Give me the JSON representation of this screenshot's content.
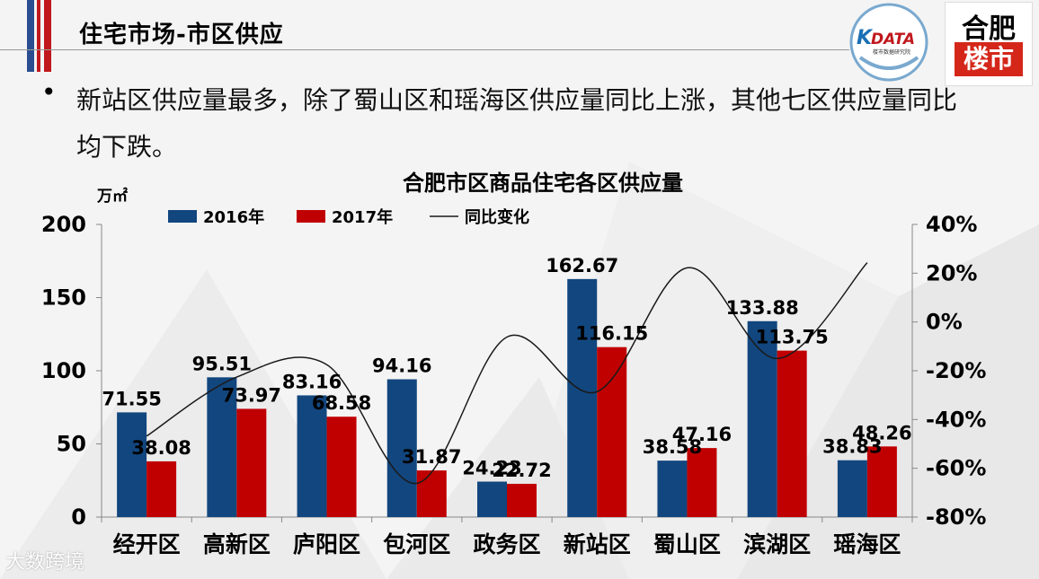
{
  "header": {
    "page_title": "住宅市场-市区供应",
    "logo_left_text": "DATA",
    "logo_left_sub": "楼市数据研究院",
    "logo_right_top": "合肥",
    "logo_right_bottom": "楼市"
  },
  "bullet": {
    "text": "新站区供应量最多，除了蜀山区和瑶海区供应量同比上涨，其他七区供应量同比均下跌。"
  },
  "watermark": "大数跨境",
  "colors": {
    "series2016": "#12467e",
    "series2017": "#c00000",
    "line": "#1a1a1a",
    "title_stripe_blue": "#2a4e8f",
    "title_stripe_red": "#c0181d"
  },
  "chart_data": {
    "type": "bar",
    "title": "合肥市区商品住宅各区供应量",
    "ylabel": "万㎡",
    "ylim": [
      0,
      200
    ],
    "yticks": [
      "0",
      "50",
      "100",
      "150",
      "200"
    ],
    "y2lim": [
      -80,
      40
    ],
    "y2ticks": [
      "-80%",
      "-60%",
      "-40%",
      "-20%",
      "0%",
      "20%",
      "40%"
    ],
    "categories": [
      "经开区",
      "高新区",
      "庐阳区",
      "包河区",
      "政务区",
      "新站区",
      "蜀山区",
      "滨湖区",
      "瑶海区"
    ],
    "series": [
      {
        "name": "2016年",
        "values": [
          71.55,
          95.51,
          83.16,
          94.16,
          24.23,
          162.67,
          38.58,
          133.88,
          38.83
        ],
        "labels": [
          "71.55",
          "95.51",
          "83.16",
          "94.16",
          "24.23",
          "162.67",
          "38.58",
          "133.88",
          "38.83"
        ]
      },
      {
        "name": "2017年",
        "values": [
          38.08,
          73.97,
          68.58,
          31.87,
          22.72,
          116.15,
          47.16,
          113.75,
          48.26
        ],
        "labels": [
          "38.08",
          "73.97",
          "68.58",
          "31.87",
          "22.72",
          "116.15",
          "47.16",
          "113.75",
          "48.26"
        ]
      }
    ],
    "line": {
      "name": "同比变化",
      "axis": "right",
      "values": [
        -46.8,
        -22.6,
        -17.5,
        -66.2,
        -6.2,
        -28.6,
        22.2,
        -15.0,
        24.3
      ]
    },
    "legend": [
      "2016年",
      "2017年",
      "同比变化"
    ],
    "legend_position": "top"
  }
}
